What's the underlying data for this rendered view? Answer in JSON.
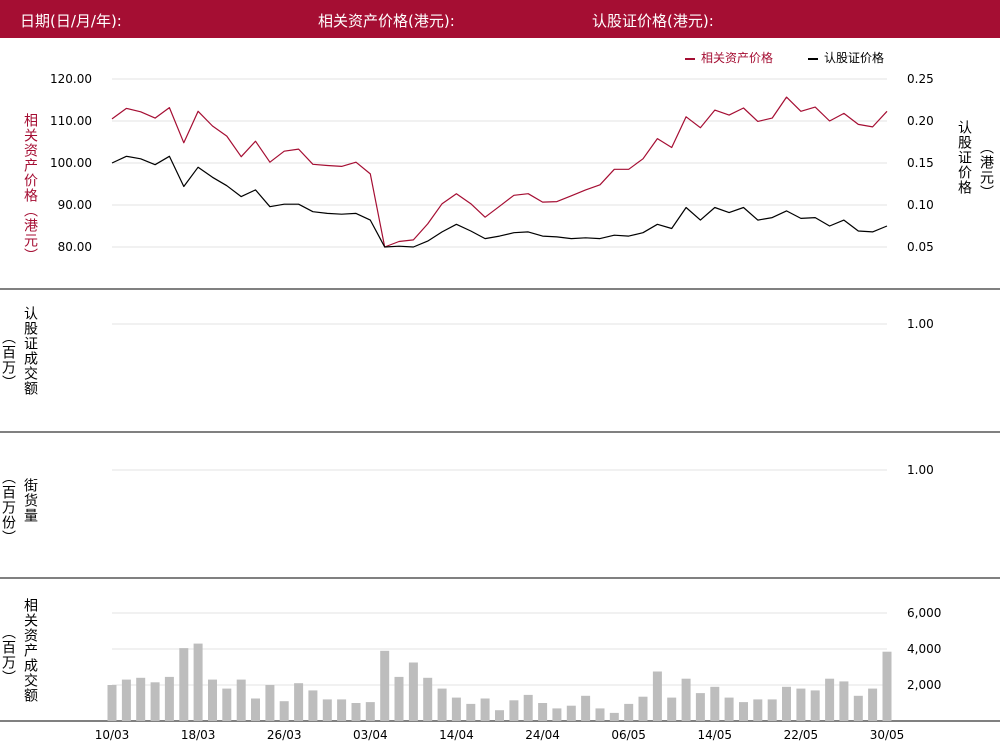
{
  "header": {
    "date_label": "日期(日/月/年):",
    "underlying_label": "相关资产价格(港元):",
    "warrant_label": "认股证价格(港元):"
  },
  "colors": {
    "brand": "#a50e33",
    "underlying": "#a50e33",
    "warrant": "#000000",
    "bars": "#bdbdbd"
  },
  "chart_data": [
    {
      "type": "line",
      "legend_position": "top-right",
      "y_left_label": "相关资产价格（港元）",
      "y_right_label_1": "认股证价格",
      "y_right_label_2": "（港元）",
      "y_left_ticks": [
        "120.00",
        "110.00",
        "100.00",
        "90.00",
        "80.00"
      ],
      "y_left_tick_values": [
        120,
        110,
        100,
        90,
        80
      ],
      "y_left_range": [
        80,
        120
      ],
      "y_right_ticks": [
        "0.25",
        "0.20",
        "0.15",
        "0.10",
        "0.05"
      ],
      "y_right_tick_values": [
        0.25,
        0.2,
        0.15,
        0.1,
        0.05
      ],
      "y_right_range": [
        0.05,
        0.25
      ],
      "x_ticks": [
        "10/03",
        "18/03",
        "26/03",
        "03/04",
        "14/04",
        "24/04",
        "06/05",
        "14/05",
        "22/05",
        "30/05"
      ],
      "x_tick_indices": [
        0,
        6,
        12,
        18,
        24,
        30,
        36,
        42,
        48,
        54
      ],
      "series": [
        {
          "name": "相关资产价格",
          "axis": "left",
          "values": [
            110.5,
            113.0,
            112.2,
            110.7,
            113.2,
            104.8,
            112.3,
            108.8,
            106.4,
            101.5,
            105.2,
            100.2,
            102.8,
            103.3,
            99.7,
            99.4,
            99.2,
            100.2,
            97.4,
            80.0,
            81.3,
            81.7,
            85.5,
            90.3,
            92.7,
            90.3,
            87.1,
            89.7,
            92.3,
            92.7,
            90.7,
            90.8,
            92.2,
            93.6,
            94.8,
            98.5,
            98.5,
            101.0,
            105.8,
            103.7,
            111.0,
            108.4,
            112.6,
            111.4,
            113.1,
            109.9,
            110.7,
            115.7,
            112.3,
            113.3,
            110.0,
            111.8,
            109.2,
            108.6,
            112.3
          ]
        },
        {
          "name": "认股证价格",
          "axis": "right",
          "values": [
            0.15,
            0.158,
            0.155,
            0.148,
            0.158,
            0.122,
            0.145,
            0.133,
            0.123,
            0.11,
            0.118,
            0.098,
            0.101,
            0.101,
            0.092,
            0.09,
            0.089,
            0.09,
            0.082,
            0.05,
            0.051,
            0.05,
            0.057,
            0.068,
            0.077,
            0.069,
            0.06,
            0.063,
            0.067,
            0.068,
            0.063,
            0.062,
            0.06,
            0.061,
            0.06,
            0.064,
            0.063,
            0.067,
            0.077,
            0.072,
            0.097,
            0.082,
            0.097,
            0.091,
            0.097,
            0.082,
            0.085,
            0.093,
            0.084,
            0.085,
            0.075,
            0.082,
            0.069,
            0.068,
            0.075
          ]
        }
      ]
    },
    {
      "type": "bar",
      "y_label_1": "认股证成交额",
      "y_label_2": "（百万）",
      "y_right_ticks": [
        "1.00"
      ],
      "y_right_tick_values": [
        1.0
      ],
      "y_range": [
        0,
        1.0
      ],
      "values": []
    },
    {
      "type": "bar",
      "y_label_1": "街货量",
      "y_label_2": "（百万份）",
      "y_right_ticks": [
        "1.00"
      ],
      "y_right_tick_values": [
        1.0
      ],
      "y_range": [
        0,
        1.0
      ],
      "values": []
    },
    {
      "type": "bar",
      "y_label_1": "相关资产成交额",
      "y_label_2": "（百万）",
      "y_right_ticks": [
        "6,000",
        "4,000",
        "2,000"
      ],
      "y_right_tick_values": [
        6000,
        4000,
        2000
      ],
      "y_range": [
        0,
        6000
      ],
      "values": [
        2000,
        2300,
        2400,
        2150,
        2450,
        4050,
        4300,
        2300,
        1800,
        2300,
        1250,
        2000,
        1100,
        2100,
        1700,
        1200,
        1200,
        1000,
        1050,
        3900,
        2450,
        3250,
        2400,
        1800,
        1300,
        950,
        1250,
        600,
        1150,
        1450,
        1000,
        700,
        850,
        1400,
        700,
        450,
        950,
        1350,
        2750,
        1300,
        2350,
        1550,
        1900,
        1300,
        1050,
        1200,
        1200,
        1900,
        1800,
        1700,
        2350,
        2200,
        1400,
        1800,
        3850
      ]
    }
  ]
}
